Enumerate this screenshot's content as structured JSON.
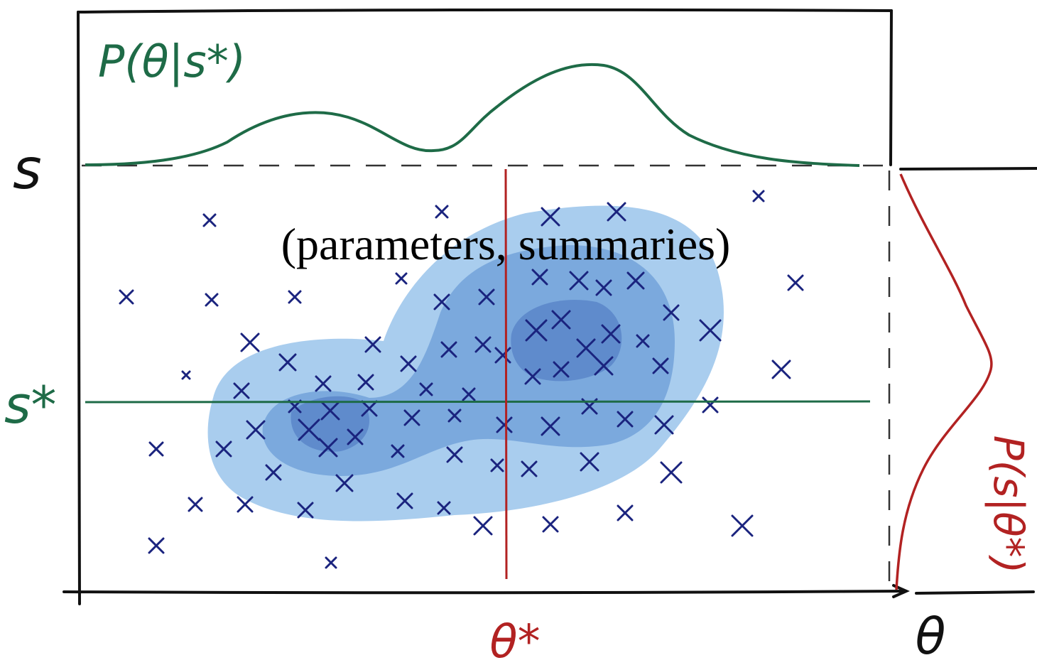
{
  "labels": {
    "posterior": "P(θ|s*)",
    "summary_axis": "s",
    "observed_summary": "s*",
    "joint": "(parameters, summaries)",
    "true_parameter": "θ*",
    "parameter_axis": "θ",
    "likelihood": "P(s|θ*)"
  }
}
